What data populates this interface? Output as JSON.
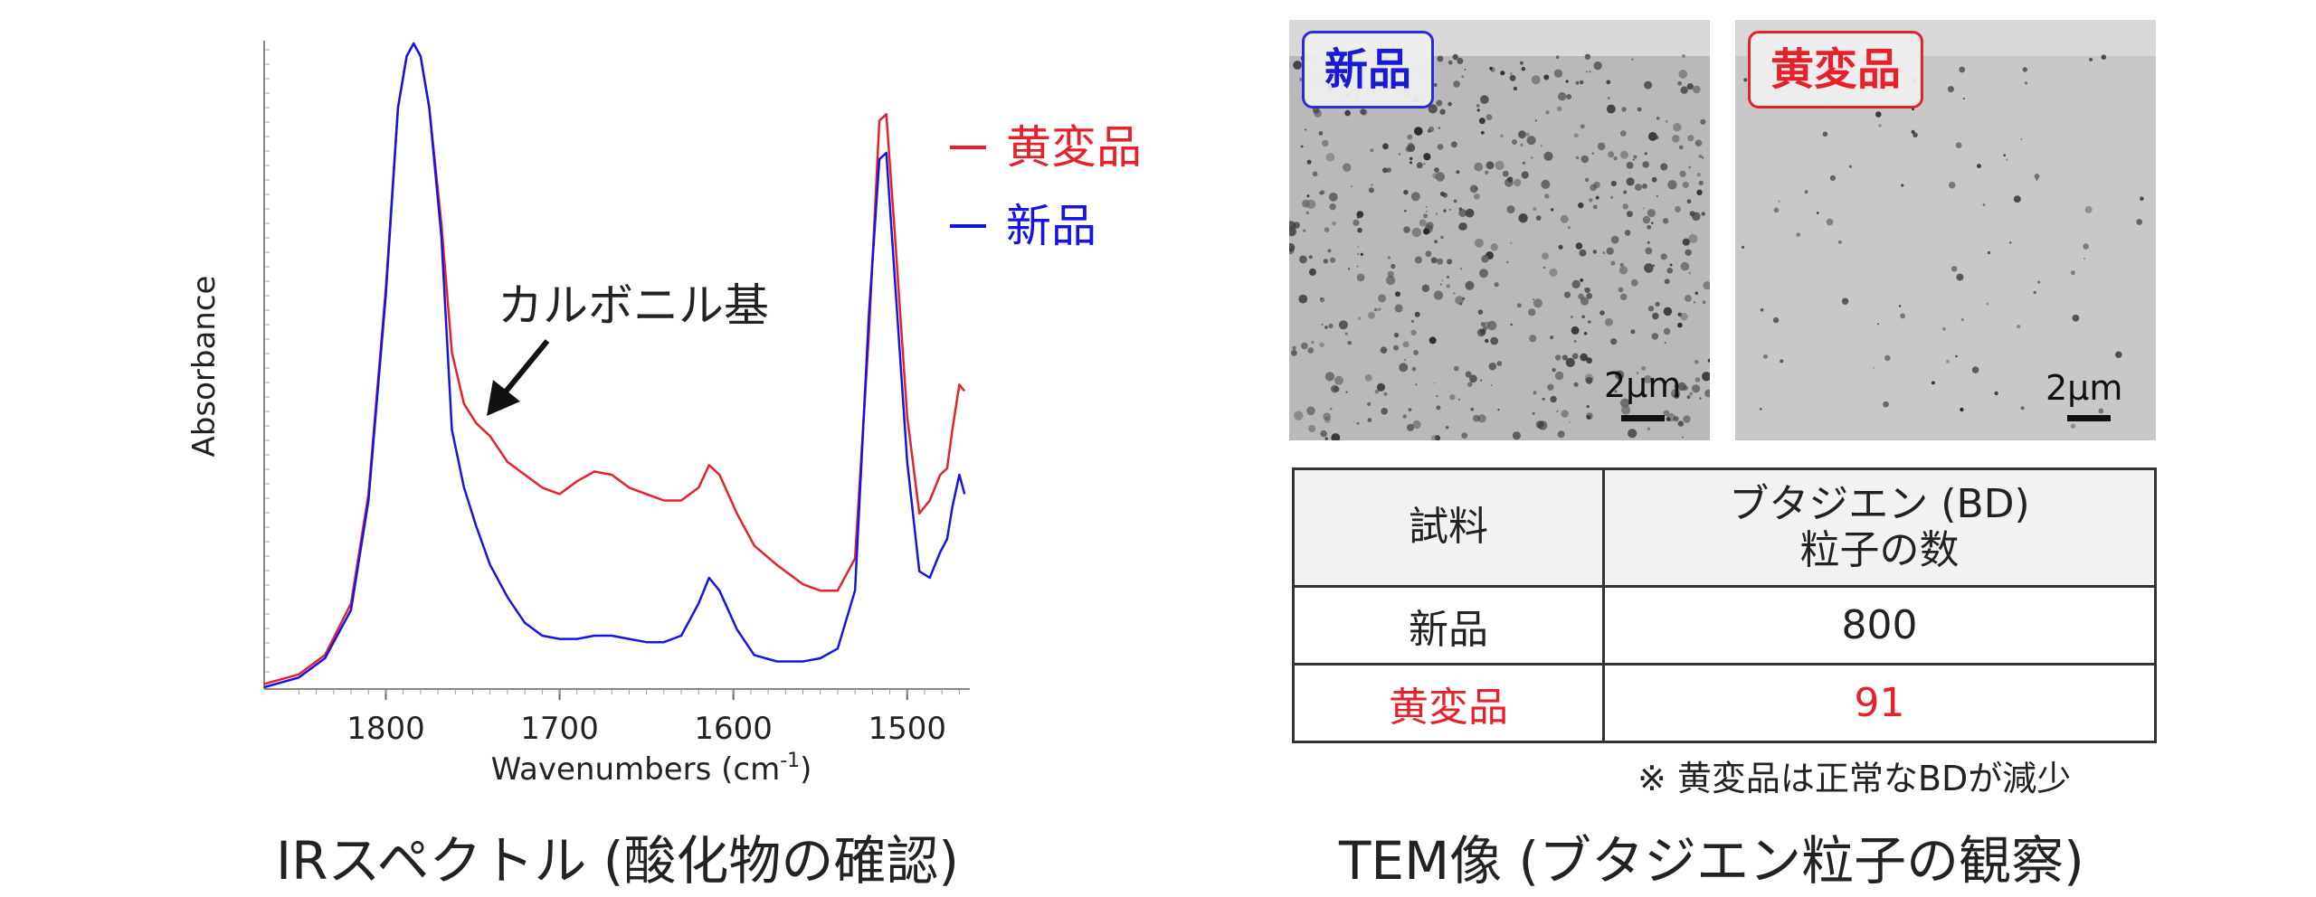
{
  "chart_data": {
    "type": "line",
    "xlabel": "Wavenumbers (cm",
    "xlabel_sup": "-1",
    "xlabel_end": ")",
    "ylabel": "Absorbance",
    "xlim": [
      1870,
      1465
    ],
    "x_ticks": [
      "1800",
      "1700",
      "1600",
      "1500"
    ],
    "legend": {
      "placement": "top-right"
    },
    "annotation": "カルボニル基",
    "series": [
      {
        "name": "黄変品",
        "color": "#e8202a",
        "points": [
          [
            1870,
            0.005
          ],
          [
            1850,
            0.02
          ],
          [
            1835,
            0.05
          ],
          [
            1820,
            0.13
          ],
          [
            1810,
            0.3
          ],
          [
            1800,
            0.62
          ],
          [
            1793,
            0.9
          ],
          [
            1788,
            0.98
          ],
          [
            1784,
            1.0
          ],
          [
            1780,
            0.98
          ],
          [
            1775,
            0.9
          ],
          [
            1768,
            0.72
          ],
          [
            1762,
            0.52
          ],
          [
            1755,
            0.44
          ],
          [
            1748,
            0.41
          ],
          [
            1740,
            0.39
          ],
          [
            1730,
            0.35
          ],
          [
            1720,
            0.33
          ],
          [
            1710,
            0.31
          ],
          [
            1700,
            0.3
          ],
          [
            1690,
            0.32
          ],
          [
            1680,
            0.335
          ],
          [
            1670,
            0.33
          ],
          [
            1660,
            0.31
          ],
          [
            1650,
            0.3
          ],
          [
            1640,
            0.29
          ],
          [
            1630,
            0.29
          ],
          [
            1620,
            0.31
          ],
          [
            1614,
            0.345
          ],
          [
            1608,
            0.33
          ],
          [
            1598,
            0.27
          ],
          [
            1588,
            0.22
          ],
          [
            1575,
            0.19
          ],
          [
            1560,
            0.16
          ],
          [
            1550,
            0.15
          ],
          [
            1540,
            0.15
          ],
          [
            1530,
            0.2
          ],
          [
            1522,
            0.55
          ],
          [
            1516,
            0.88
          ],
          [
            1512,
            0.89
          ],
          [
            1507,
            0.7
          ],
          [
            1500,
            0.42
          ],
          [
            1493,
            0.27
          ],
          [
            1487,
            0.29
          ],
          [
            1481,
            0.33
          ],
          [
            1477,
            0.34
          ],
          [
            1474,
            0.4
          ],
          [
            1470,
            0.47
          ],
          [
            1467,
            0.46
          ]
        ]
      },
      {
        "name": "新品",
        "color": "#1414e6",
        "points": [
          [
            1870,
            0.0
          ],
          [
            1850,
            0.015
          ],
          [
            1835,
            0.045
          ],
          [
            1820,
            0.12
          ],
          [
            1810,
            0.29
          ],
          [
            1800,
            0.61
          ],
          [
            1793,
            0.9
          ],
          [
            1788,
            0.98
          ],
          [
            1784,
            1.0
          ],
          [
            1780,
            0.98
          ],
          [
            1775,
            0.9
          ],
          [
            1768,
            0.7
          ],
          [
            1762,
            0.4
          ],
          [
            1755,
            0.31
          ],
          [
            1748,
            0.25
          ],
          [
            1740,
            0.19
          ],
          [
            1730,
            0.14
          ],
          [
            1720,
            0.1
          ],
          [
            1710,
            0.08
          ],
          [
            1700,
            0.075
          ],
          [
            1690,
            0.075
          ],
          [
            1680,
            0.08
          ],
          [
            1670,
            0.08
          ],
          [
            1660,
            0.075
          ],
          [
            1650,
            0.07
          ],
          [
            1640,
            0.07
          ],
          [
            1630,
            0.08
          ],
          [
            1620,
            0.13
          ],
          [
            1614,
            0.17
          ],
          [
            1608,
            0.15
          ],
          [
            1598,
            0.09
          ],
          [
            1588,
            0.05
          ],
          [
            1575,
            0.04
          ],
          [
            1560,
            0.04
          ],
          [
            1550,
            0.045
          ],
          [
            1540,
            0.06
          ],
          [
            1530,
            0.15
          ],
          [
            1522,
            0.58
          ],
          [
            1516,
            0.82
          ],
          [
            1512,
            0.83
          ],
          [
            1507,
            0.63
          ],
          [
            1500,
            0.35
          ],
          [
            1493,
            0.18
          ],
          [
            1487,
            0.17
          ],
          [
            1481,
            0.21
          ],
          [
            1477,
            0.23
          ],
          [
            1474,
            0.28
          ],
          [
            1470,
            0.33
          ],
          [
            1467,
            0.3
          ]
        ]
      }
    ]
  },
  "ir_caption": "IRスペクトル (酸化物の確認)",
  "tem": {
    "caption": "TEM像 (ブタジエン粒子の観察)",
    "new_label": "新品",
    "yellow_label": "黄変品",
    "scale": "2μm",
    "new_color": "#1a1ad6",
    "yellow_color": "#e8202a"
  },
  "table": {
    "col1_header": "試料",
    "col2_header_line1": "ブタジエン (BD)",
    "col2_header_line2": "粒子の数",
    "rows": [
      {
        "sample": "新品",
        "count": "800"
      },
      {
        "sample": "黄変品",
        "count": "91"
      }
    ],
    "note": "※ 黄変品は正常なBDが減少"
  }
}
